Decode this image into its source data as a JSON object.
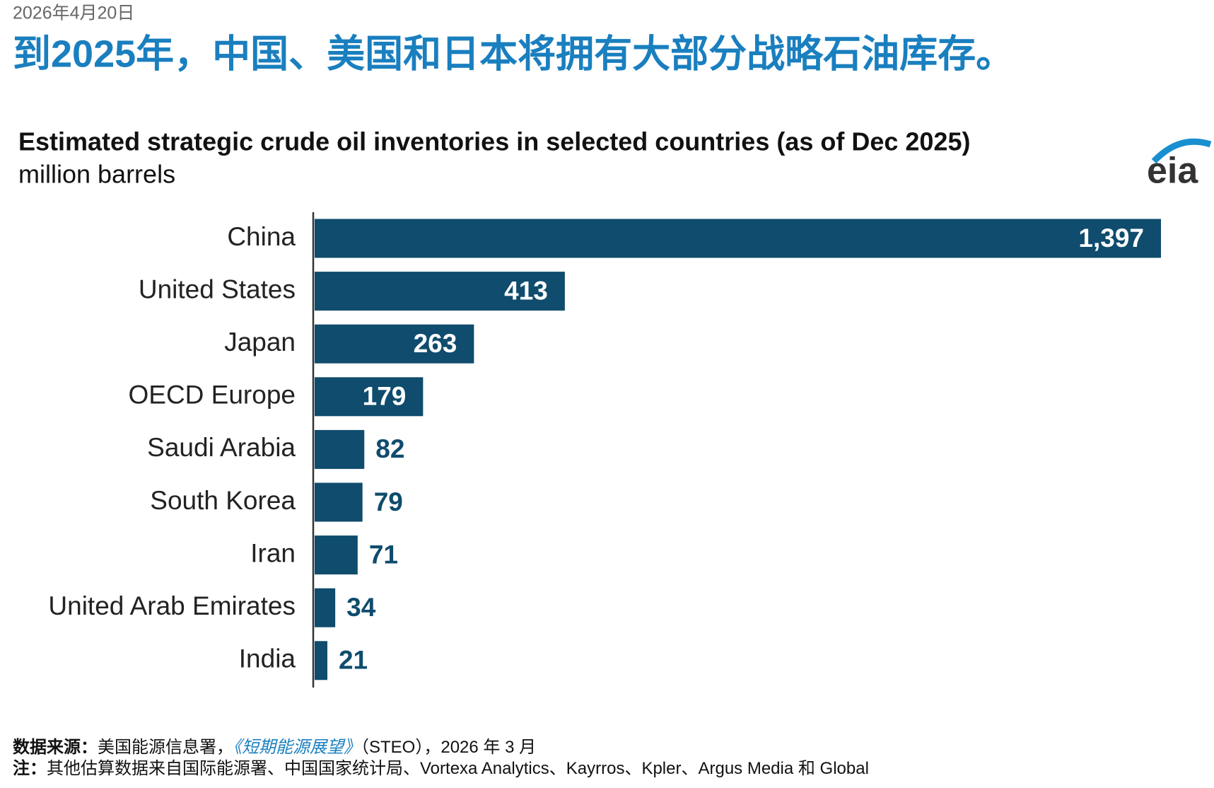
{
  "date": "2026年4月20日",
  "headline": "到2025年，中国、美国和日本将拥有大部分战略石油库存。",
  "chart_data": {
    "type": "bar",
    "orientation": "horizontal",
    "title": "Estimated strategic crude oil inventories in selected countries (as of Dec 2025)",
    "subtitle": "million barrels",
    "categories": [
      "China",
      "United States",
      "Japan",
      "OECD Europe",
      "Saudi Arabia",
      "South Korea",
      "Iran",
      "United Arab Emirates",
      "India"
    ],
    "values": [
      1397,
      413,
      263,
      179,
      82,
      79,
      71,
      34,
      21
    ],
    "value_labels": [
      "1,397",
      "413",
      "263",
      "179",
      "82",
      "79",
      "71",
      "34",
      "21"
    ],
    "color": "#0f4c6d"
  },
  "footer": {
    "source_label": "数据来源：",
    "source_text": "美国能源信息署，",
    "source_title": "《短期能源展望》",
    "source_rest": "（STEO），2026 年 3 月",
    "note_label": "注：",
    "note_text": "其他估算数据来自国际能源署、中国国家统计局、Vortexa Analytics、Kayrros、Kpler、Argus Media 和 Global"
  }
}
